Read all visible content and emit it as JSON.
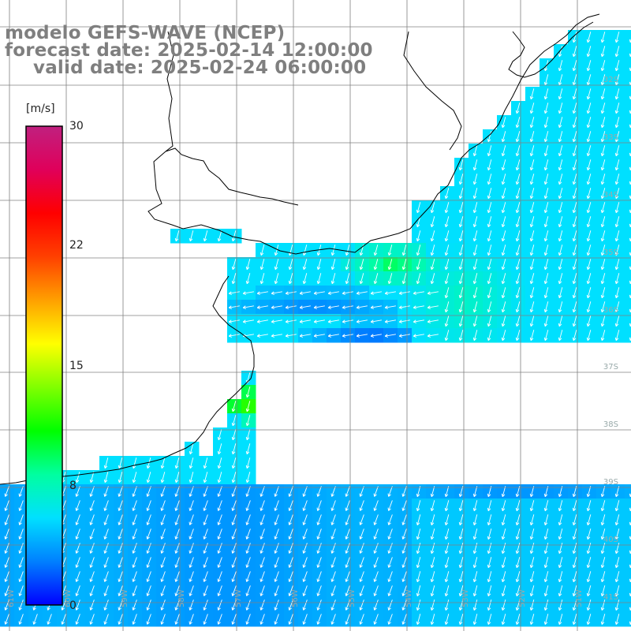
{
  "title": {
    "line1": "modelo GEFS-WAVE (NCEP)",
    "line2": "forecast date: 2025-02-14 12:00:00",
    "line3": "valid date: 2025-02-24 06:00:00"
  },
  "colorbar": {
    "unit": "[m/s]",
    "ticks": [
      "30",
      "22",
      "15",
      "8",
      "0"
    ],
    "tick_values": [
      30,
      22,
      15,
      8,
      0
    ],
    "range": [
      0,
      30
    ],
    "colors": [
      "#0000ff",
      "#0080ff",
      "#00e0ff",
      "#00ffa0",
      "#00ff00",
      "#80ff00",
      "#ffff00",
      "#ffa000",
      "#ff4000",
      "#ff0000",
      "#e0005a",
      "#c0207f"
    ]
  },
  "map": {
    "land_color": "#ffffff",
    "grid_color": "#808080",
    "lat_labels": [
      "32S",
      "33S",
      "34S",
      "35S",
      "36S",
      "37S",
      "38S",
      "39S",
      "40S",
      "41S"
    ],
    "lon_labels": [
      "61W",
      "60W",
      "59W",
      "58W",
      "57W",
      "56W",
      "55W",
      "54W",
      "53W",
      "52W",
      "51W"
    ],
    "wind_field": "southwest-directed arrows (toward SSW), speed 3-17 m/s"
  }
}
